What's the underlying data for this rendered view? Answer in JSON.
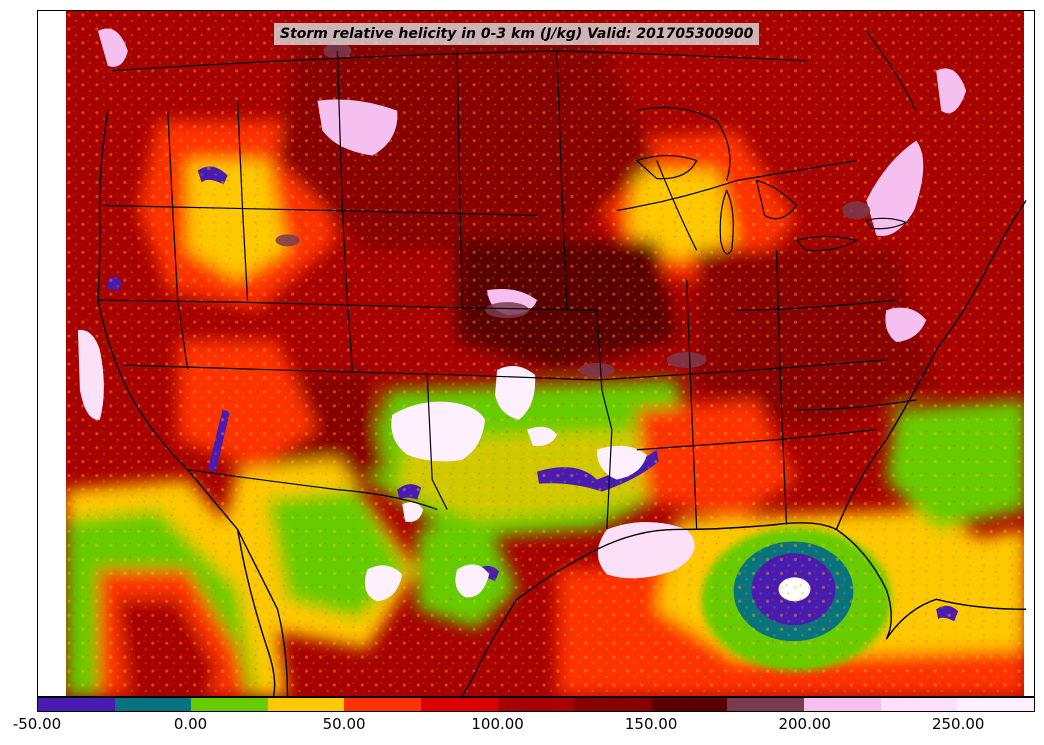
{
  "title": "Storm relative helicity in 0-3 km (J/kg) Valid: 201705300900",
  "colorbar": {
    "min": -50,
    "max": 275,
    "bins": [
      {
        "from": -50,
        "to": -25,
        "color": "#4a1bb0"
      },
      {
        "from": -25,
        "to": 0,
        "color": "#08737f"
      },
      {
        "from": 0,
        "to": 25,
        "color": "#66cc00"
      },
      {
        "from": 25,
        "to": 50,
        "color": "#ffc800"
      },
      {
        "from": 50,
        "to": 75,
        "color": "#ff3300"
      },
      {
        "from": 75,
        "to": 100,
        "color": "#dd0000"
      },
      {
        "from": 100,
        "to": 125,
        "color": "#a80000"
      },
      {
        "from": 125,
        "to": 150,
        "color": "#880000"
      },
      {
        "from": 150,
        "to": 175,
        "color": "#5a0000"
      },
      {
        "from": 175,
        "to": 200,
        "color": "#7a3a50"
      },
      {
        "from": 200,
        "to": 225,
        "color": "#f5c0f0"
      },
      {
        "from": 225,
        "to": 250,
        "color": "#fbe0f8"
      },
      {
        "from": 250,
        "to": 275,
        "color": "#fff0ff"
      }
    ],
    "tick_labels": [
      {
        "value": -50,
        "label": "-50.00"
      },
      {
        "value": 0,
        "label": "0.00"
      },
      {
        "value": 50,
        "label": "50.00"
      },
      {
        "value": 100,
        "label": "100.00"
      },
      {
        "value": 150,
        "label": "150.00"
      },
      {
        "value": 200,
        "label": "200.00"
      },
      {
        "value": 250,
        "label": "250.00"
      }
    ]
  }
}
